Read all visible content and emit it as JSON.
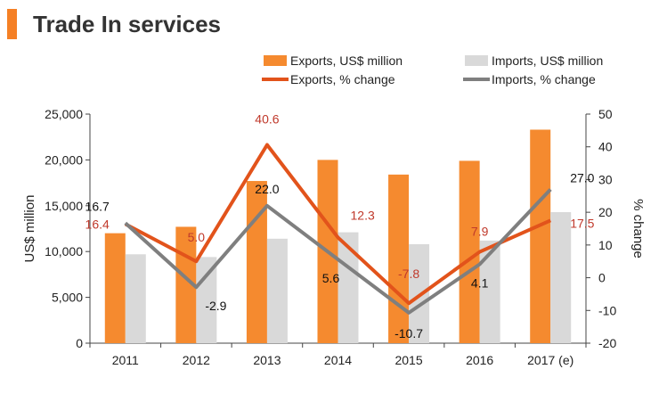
{
  "page": {
    "title": "Trade In services"
  },
  "colors": {
    "accent": "#F58025",
    "exports_bar": "#F58A2F",
    "imports_bar": "#D9D9D9",
    "exports_line": "#E2531B",
    "imports_line": "#7F7F7F",
    "exports_label": "#C0392B",
    "imports_label": "#111111",
    "axis": "#444444",
    "text": "#222222"
  },
  "chart_data": {
    "type": "bar",
    "categories": [
      "2011",
      "2012",
      "2013",
      "2014",
      "2015",
      "2016",
      "2017 (e)"
    ],
    "series": [
      {
        "name": "Exports, US$ million",
        "kind": "bar",
        "axis": "left",
        "values": [
          12000,
          12700,
          17700,
          20000,
          18400,
          19900,
          23300
        ]
      },
      {
        "name": "Imports, US$ million",
        "kind": "bar",
        "axis": "left",
        "values": [
          9700,
          9400,
          11400,
          12100,
          10800,
          11200,
          14300
        ]
      },
      {
        "name": "Exports, % change",
        "kind": "line",
        "axis": "right",
        "values": [
          16.4,
          5.0,
          40.6,
          12.3,
          -7.8,
          7.9,
          17.5
        ],
        "labels": [
          "16.4",
          "5.0",
          "40.6",
          "12.3",
          "-7.8",
          "7.9",
          "17.5"
        ]
      },
      {
        "name": "Imports, % change",
        "kind": "line",
        "axis": "right",
        "values": [
          16.7,
          -2.9,
          22.0,
          5.6,
          -10.7,
          4.1,
          27.0
        ],
        "labels": [
          "16.7",
          "-2.9",
          "22.0",
          "5.6",
          "-10.7",
          "4.1",
          "27.0"
        ]
      }
    ],
    "y_left": {
      "label": "US$ million",
      "min": 0,
      "max": 25000,
      "ticks": [
        0,
        5000,
        10000,
        15000,
        20000,
        25000
      ],
      "tick_labels": [
        "0",
        "5,000",
        "10,000",
        "15,000",
        "20,000",
        "25,000"
      ]
    },
    "y_right": {
      "label": "% change",
      "min": -20,
      "max": 50,
      "ticks": [
        -20,
        -10,
        0,
        10,
        20,
        30,
        40,
        50
      ],
      "tick_labels": [
        "-20",
        "-10",
        "0",
        "10",
        "20",
        "30",
        "40",
        "50"
      ]
    },
    "grid": false,
    "legend_position": "top"
  }
}
